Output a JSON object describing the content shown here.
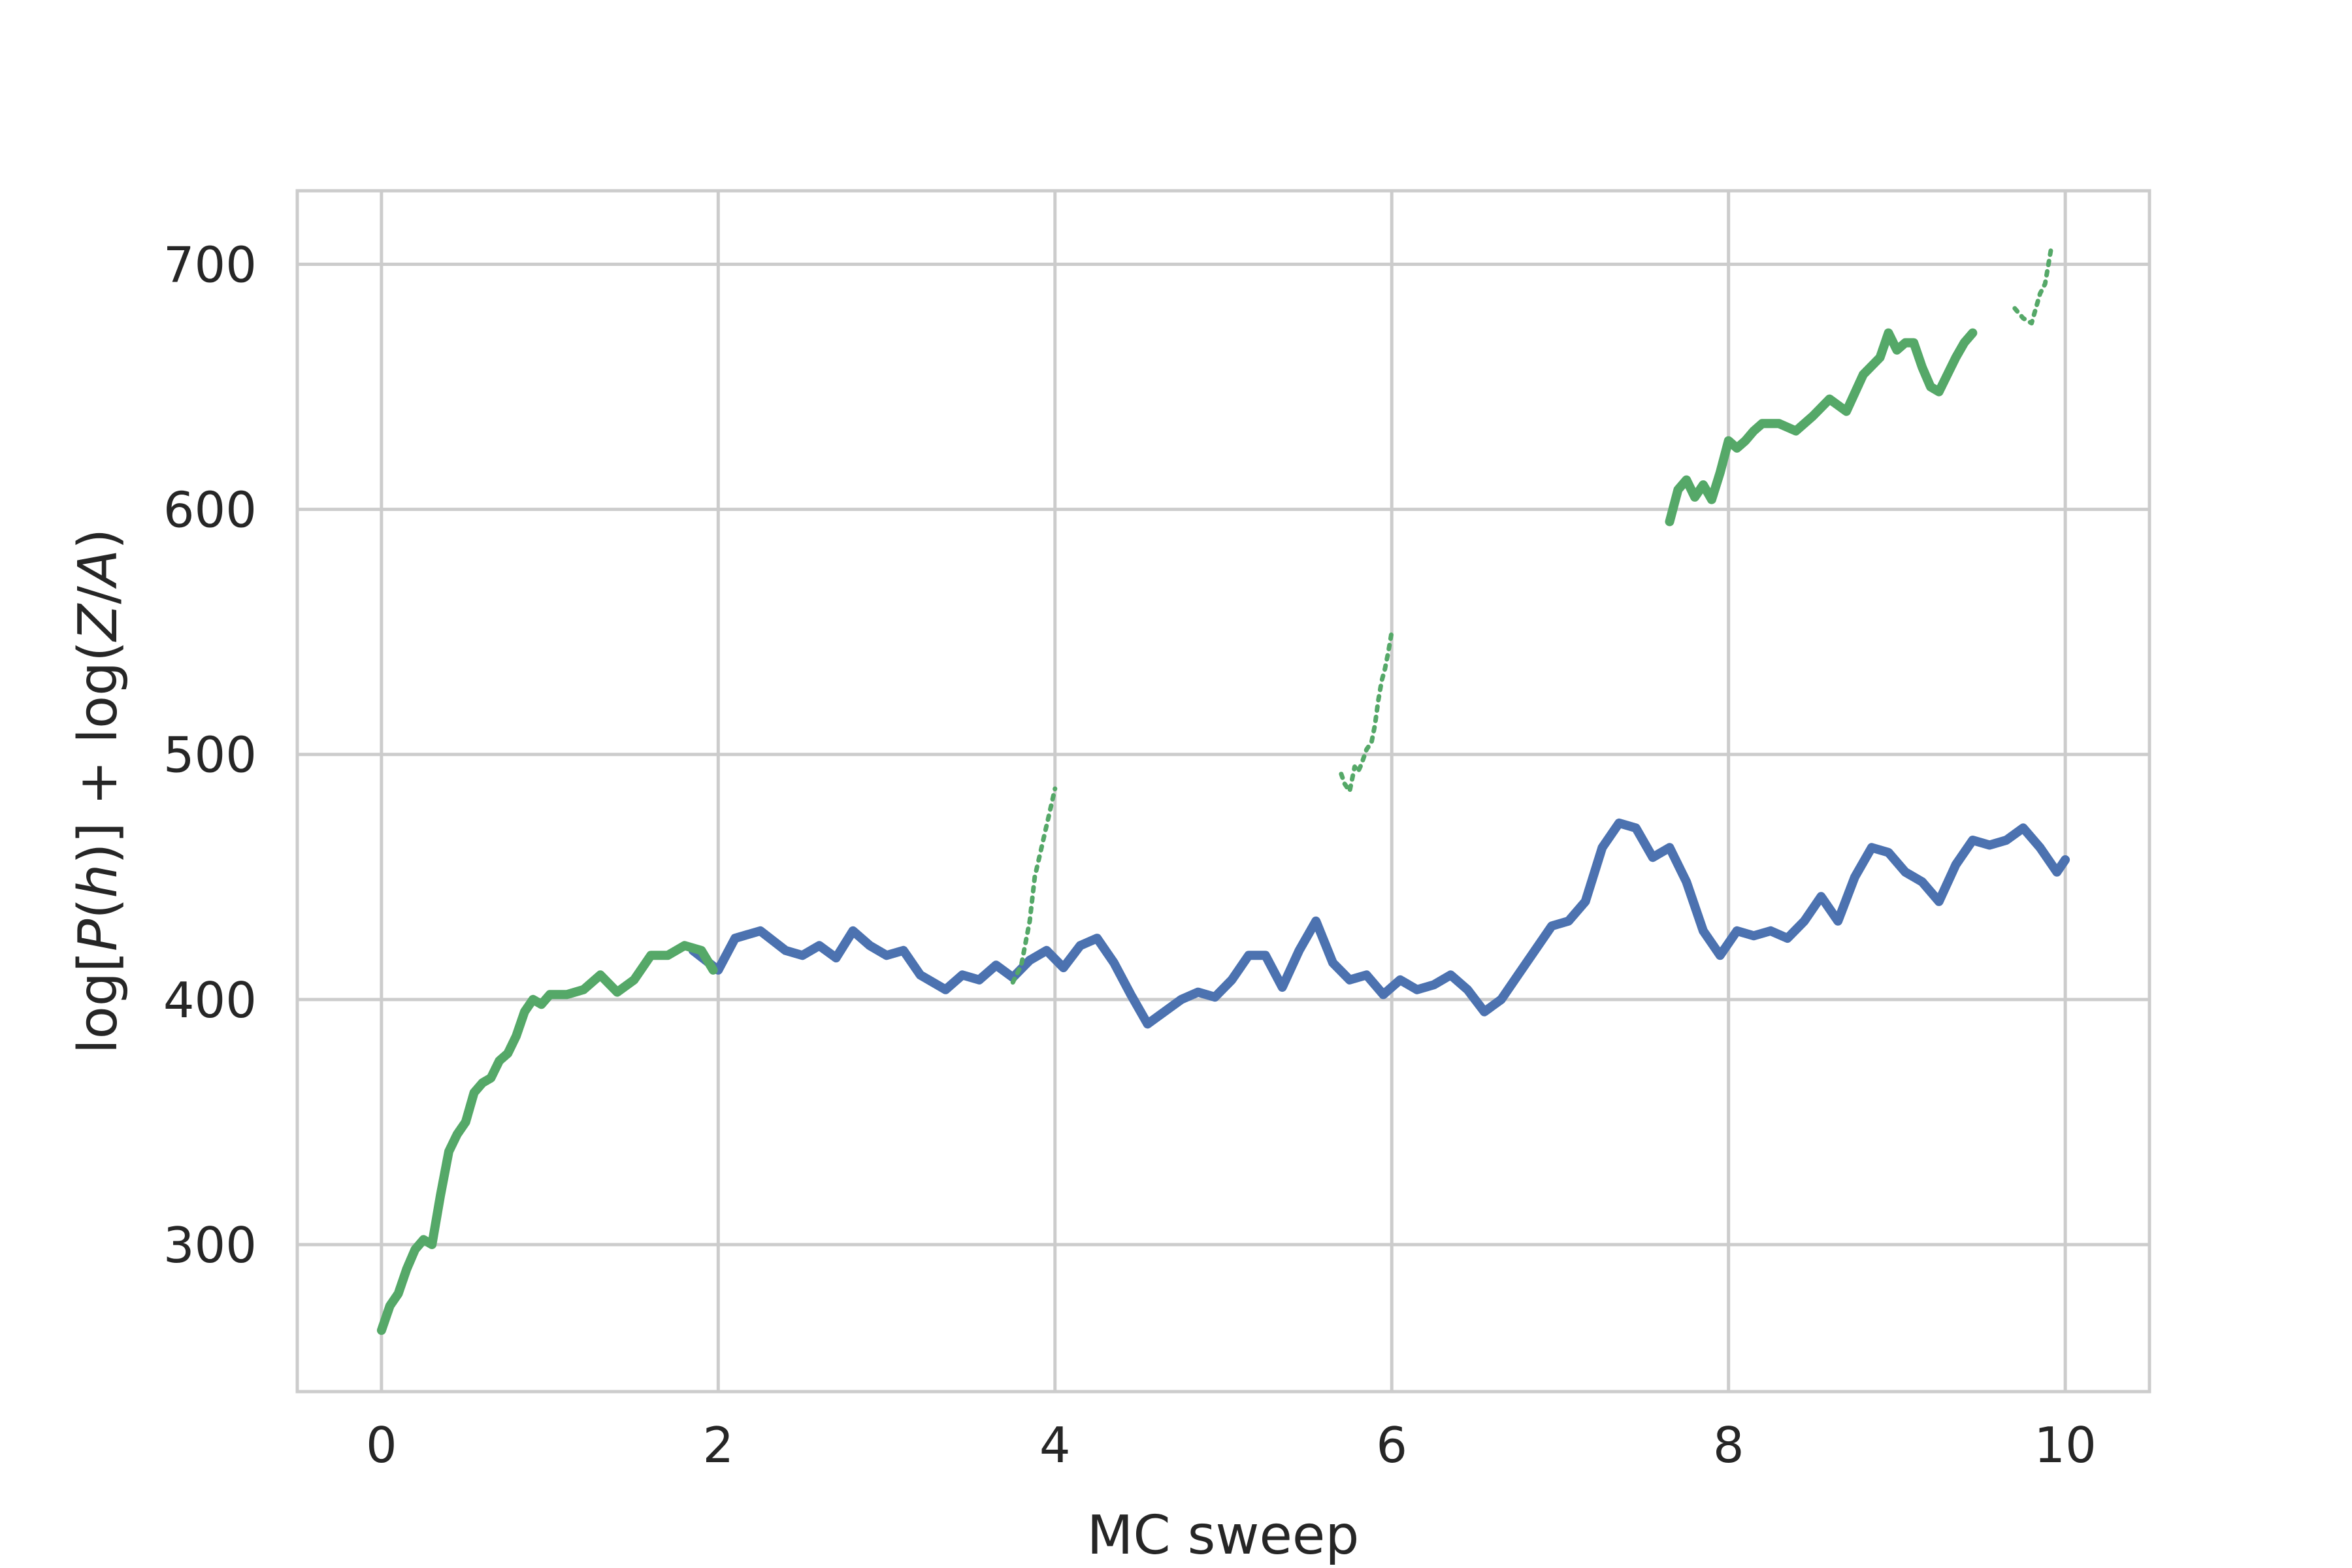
{
  "chart_data": {
    "type": "line",
    "title": "",
    "xlabel": "MC sweep",
    "ylabel": {
      "prefix": "log[",
      "p": "P",
      "open": "(",
      "h": "h",
      "close": ")] + log(",
      "z": "Z",
      "slash": "/",
      "a": "A",
      "end": ")"
    },
    "xlim": [
      -0.5,
      10.5
    ],
    "ylim": [
      240,
      730
    ],
    "x_ticks": [
      0,
      2,
      4,
      6,
      8,
      10
    ],
    "x_tick_labels": [
      "0",
      "2",
      "4",
      "6",
      "8",
      "10"
    ],
    "y_ticks": [
      300,
      400,
      500,
      600,
      700
    ],
    "y_tick_labels": [
      "300",
      "400",
      "500",
      "600",
      "700"
    ],
    "grid": true,
    "legend": "none",
    "series": [
      {
        "color": "#4c72b0",
        "style": "thick-line",
        "x": [
          1.85,
          2.0,
          2.1,
          2.25,
          2.4,
          2.5,
          2.6,
          2.7,
          2.8,
          2.9,
          3.0,
          3.1,
          3.2,
          3.35,
          3.45,
          3.55,
          3.65,
          3.75,
          3.85,
          3.95,
          4.05,
          4.15,
          4.25,
          4.35,
          4.45,
          4.55,
          4.65,
          4.75,
          4.85,
          4.95,
          5.05,
          5.15,
          5.25,
          5.35,
          5.45,
          5.55,
          5.65,
          5.75,
          5.85,
          5.95,
          6.05,
          6.15,
          6.25,
          6.35,
          6.45,
          6.55,
          6.65,
          6.75,
          6.85,
          6.95,
          7.05,
          7.15,
          7.25,
          7.35,
          7.45,
          7.55,
          7.65,
          7.75,
          7.85,
          7.95,
          8.05,
          8.15,
          8.25,
          8.35,
          8.45,
          8.55,
          8.65,
          8.75,
          8.85,
          8.95,
          9.05,
          9.15,
          9.25,
          9.35,
          9.45,
          9.55,
          9.65,
          9.75,
          9.85,
          9.95,
          10.0
        ],
        "y": [
          420,
          412,
          425,
          428,
          420,
          418,
          422,
          417,
          428,
          422,
          418,
          420,
          410,
          404,
          410,
          408,
          414,
          409,
          416,
          420,
          413,
          422,
          425,
          415,
          402,
          390,
          395,
          400,
          403,
          401,
          408,
          418,
          418,
          405,
          420,
          432,
          415,
          408,
          410,
          402,
          408,
          404,
          406,
          410,
          404,
          395,
          400,
          410,
          420,
          430,
          432,
          440,
          462,
          472,
          470,
          458,
          462,
          448,
          428,
          418,
          428,
          426,
          428,
          425,
          432,
          442,
          432,
          450,
          462,
          460,
          452,
          448,
          440,
          455,
          465,
          463,
          465,
          470,
          462,
          452,
          457
        ]
      },
      {
        "color": "#55a868",
        "style": "thick-line",
        "x": [
          0.0,
          0.05,
          0.1,
          0.15,
          0.2,
          0.25,
          0.3,
          0.35,
          0.4,
          0.45,
          0.5,
          0.55,
          0.6,
          0.65,
          0.7,
          0.75,
          0.8,
          0.85,
          0.9,
          0.95,
          1.0,
          1.1,
          1.2,
          1.3,
          1.4,
          1.5,
          1.6,
          1.7,
          1.8,
          1.9,
          1.97
        ],
        "y": [
          265,
          275,
          280,
          290,
          298,
          302,
          300,
          320,
          338,
          345,
          350,
          362,
          366,
          368,
          375,
          378,
          385,
          395,
          400,
          398,
          402,
          402,
          404,
          410,
          403,
          408,
          418,
          418,
          422,
          420,
          412
        ]
      },
      {
        "color": "#55a868",
        "style": "thin-line",
        "x": [
          3.75,
          3.8,
          3.85,
          3.88,
          3.9,
          3.92,
          3.94,
          3.96,
          3.98,
          4.0
        ],
        "y": [
          407,
          414,
          432,
          450,
          456,
          462,
          468,
          474,
          480,
          486
        ]
      },
      {
        "color": "#55a868",
        "style": "thin-line",
        "x": [
          5.7,
          5.72,
          5.75,
          5.78,
          5.8,
          5.82,
          5.85,
          5.88,
          5.9,
          5.92,
          5.94,
          5.96,
          5.98,
          6.0
        ],
        "y": [
          492,
          488,
          485,
          495,
          493,
          496,
          502,
          505,
          512,
          522,
          530,
          535,
          542,
          550
        ]
      },
      {
        "color": "#55a868",
        "style": "thick-line",
        "x": [
          7.65,
          7.7,
          7.75,
          7.8,
          7.85,
          7.9,
          7.95,
          8.0,
          8.05,
          8.1,
          8.15,
          8.2,
          8.3,
          8.4,
          8.5,
          8.6,
          8.7,
          8.8,
          8.9,
          8.95,
          9.0,
          9.05,
          9.1,
          9.15,
          9.2,
          9.25,
          9.3,
          9.35,
          9.4,
          9.45
        ],
        "y": [
          595,
          608,
          612,
          605,
          610,
          604,
          615,
          628,
          625,
          628,
          632,
          635,
          635,
          632,
          638,
          645,
          640,
          655,
          662,
          672,
          665,
          668,
          668,
          658,
          650,
          648,
          655,
          662,
          668,
          672
        ]
      },
      {
        "color": "#55a868",
        "style": "thin-line",
        "x": [
          9.7,
          9.75,
          9.8,
          9.85,
          9.88,
          9.9,
          9.92
        ],
        "y": [
          682,
          678,
          676,
          688,
          692,
          700,
          708
        ]
      }
    ]
  }
}
